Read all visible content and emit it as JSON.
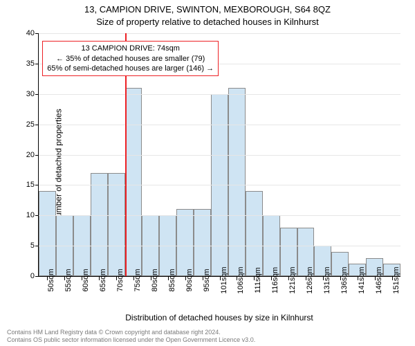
{
  "header": {
    "line1": "13, CAMPION DRIVE, SWINTON, MEXBOROUGH, S64 8QZ",
    "line2": "Size of property relative to detached houses in Kilnhurst"
  },
  "chart": {
    "type": "bar",
    "xlabel": "Distribution of detached houses by size in Kilnhurst",
    "ylabel": "Number of detached properties",
    "ylim": [
      0,
      40
    ],
    "yticks": [
      0,
      5,
      10,
      15,
      20,
      25,
      30,
      35,
      40
    ],
    "categories": [
      "50sqm",
      "55sqm",
      "60sqm",
      "65sqm",
      "70sqm",
      "75sqm",
      "80sqm",
      "85sqm",
      "90sqm",
      "95sqm",
      "101sqm",
      "106sqm",
      "111sqm",
      "116sqm",
      "121sqm",
      "126sqm",
      "131sqm",
      "136sqm",
      "141sqm",
      "146sqm",
      "151sqm"
    ],
    "values": [
      14,
      10,
      10,
      17,
      17,
      31,
      10,
      10,
      11,
      11,
      30,
      31,
      14,
      10,
      8,
      8,
      5,
      4,
      2,
      3,
      2
    ],
    "bar_fill": "#cfe4f3",
    "bar_stroke": "#8b8b8b",
    "bar_width_ratio": 1.0,
    "grid_color": "#e6e6e6",
    "background_color": "#ffffff",
    "reference_line": {
      "category_index": 4,
      "color": "#ed2024",
      "width": 2
    },
    "annotation": {
      "lines": [
        "13 CAMPION DRIVE: 74sqm",
        "← 35% of detached houses are smaller (79)",
        "65% of semi-detached houses are larger (146) →"
      ],
      "border_color": "#ed2024",
      "box_x_ratio": 0.01,
      "box_y_value": 38.7
    },
    "label_fontsize": 12,
    "tick_fontsize": 11
  },
  "footer": {
    "line1": "Contains HM Land Registry data © Crown copyright and database right 2024.",
    "line2": "Contains OS public sector information licensed under the Open Government Licence v3.0."
  }
}
